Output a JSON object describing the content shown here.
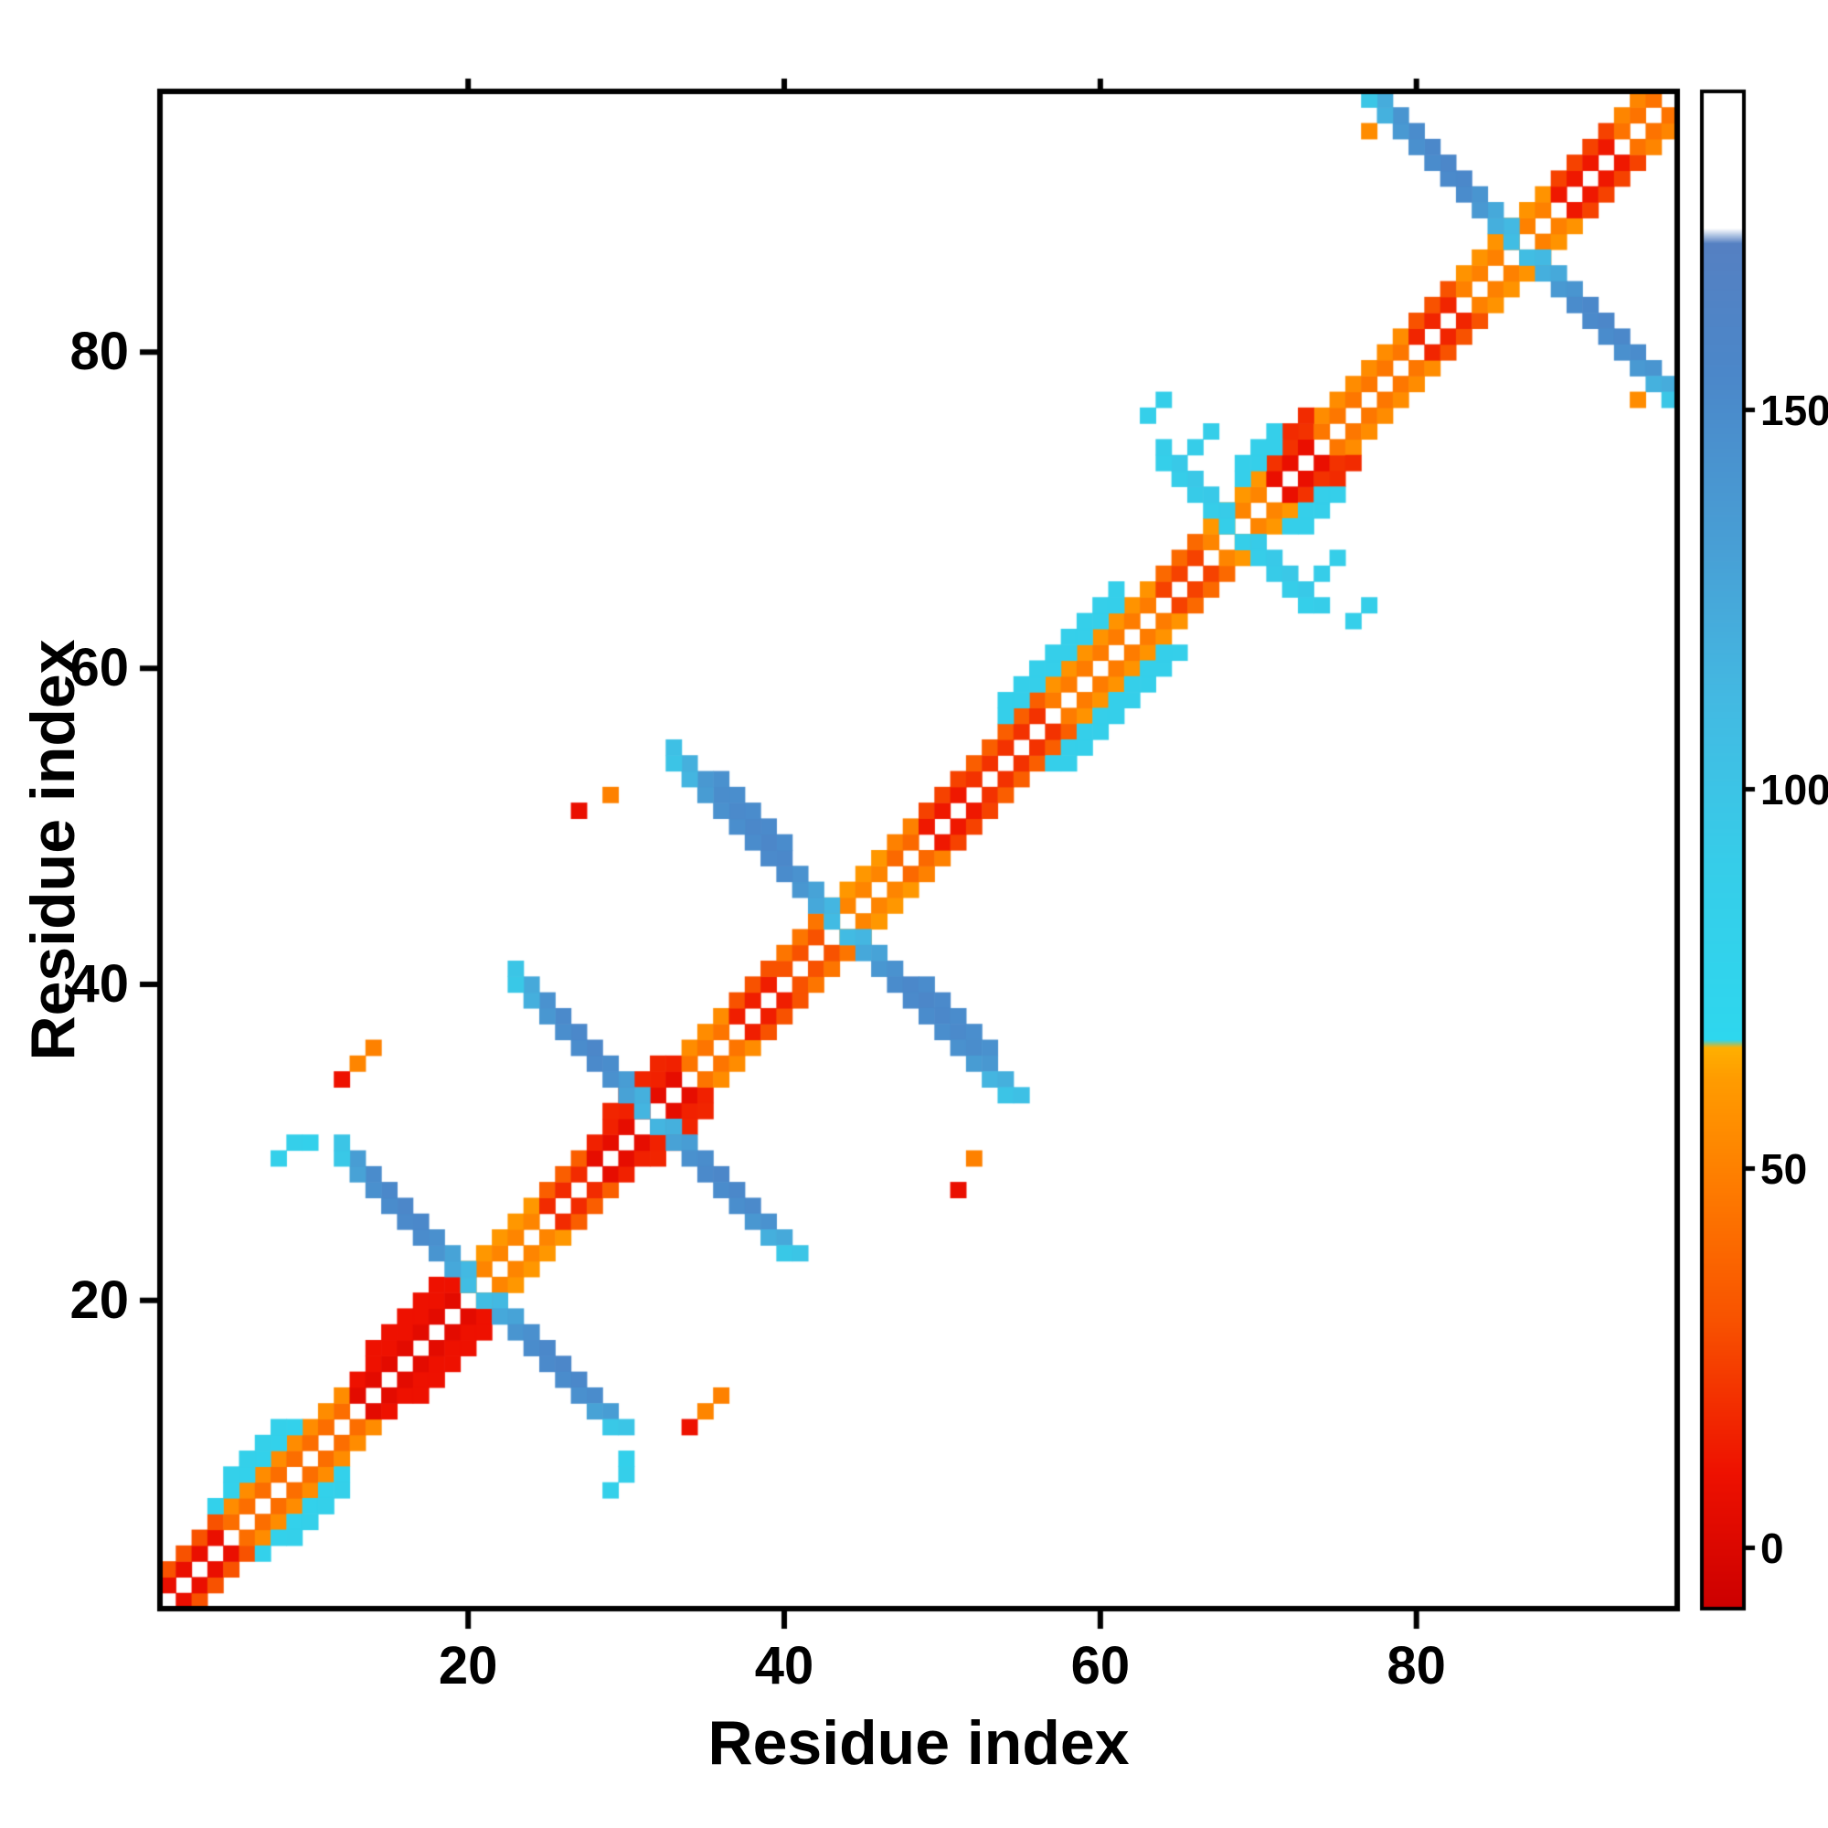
{
  "chart_data": {
    "type": "heatmap",
    "title": "",
    "xlabel": "Residue index",
    "ylabel": "Residue index",
    "n_residues": 96,
    "x_range": [
      0.5,
      96.5
    ],
    "y_range": [
      0.5,
      96.5
    ],
    "x_ticks": [
      20,
      40,
      60,
      80
    ],
    "y_ticks": [
      20,
      40,
      60,
      80
    ],
    "grid": false,
    "symmetric": true,
    "background_value_color": "#ffffff",
    "colorbar": {
      "position": "right",
      "vmin": -8,
      "vmax": 192,
      "ticks": [
        0,
        50,
        100,
        150
      ],
      "stops": [
        [
          -8,
          "#cc0000"
        ],
        [
          10,
          "#ee1100"
        ],
        [
          30,
          "#f85200"
        ],
        [
          48,
          "#fe7c00"
        ],
        [
          62,
          "#ff9c00"
        ],
        [
          66,
          "#ffb000"
        ],
        [
          67,
          "#2ed7ee"
        ],
        [
          90,
          "#36cde9"
        ],
        [
          112,
          "#43b9e2"
        ],
        [
          132,
          "#489fd5"
        ],
        [
          155,
          "#4b87c9"
        ],
        [
          172,
          "#5580c2"
        ],
        [
          174,
          "#ffffff"
        ],
        [
          192,
          "#ffffff"
        ]
      ]
    },
    "features": {
      "diagonal_band_segments": [
        {
          "from": 1,
          "to": 4,
          "o1": 8,
          "o2": 30
        },
        {
          "from": 5,
          "to": 12,
          "o1": 42,
          "o2": 55
        },
        {
          "from": 13,
          "to": 19,
          "o1": 4,
          "o2": 10
        },
        {
          "from": 20,
          "to": 24,
          "o1": 52,
          "o2": 60
        },
        {
          "from": 25,
          "to": 27,
          "o1": 18,
          "o2": 35
        },
        {
          "from": 28,
          "to": 33,
          "o1": 6,
          "o2": 15
        },
        {
          "from": 34,
          "to": 36,
          "o1": 45,
          "o2": 55
        },
        {
          "from": 37,
          "to": 39,
          "o1": 14,
          "o2": 30
        },
        {
          "from": 40,
          "to": 42,
          "o1": 30,
          "o2": 45
        },
        {
          "from": 43,
          "to": 46,
          "o1": 52,
          "o2": 60
        },
        {
          "from": 47,
          "to": 48,
          "o1": 40,
          "o2": 50
        },
        {
          "from": 49,
          "to": 51,
          "o1": 12,
          "o2": 25
        },
        {
          "from": 52,
          "to": 56,
          "o1": 20,
          "o2": 35
        },
        {
          "from": 57,
          "to": 63,
          "o1": 48,
          "o2": 58
        },
        {
          "from": 64,
          "to": 66,
          "o1": 25,
          "o2": 40
        },
        {
          "from": 67,
          "to": 70,
          "o1": 52,
          "o2": 60
        },
        {
          "from": 71,
          "to": 73,
          "o1": 8,
          "o2": 20
        },
        {
          "from": 74,
          "to": 79,
          "o1": 46,
          "o2": 55
        },
        {
          "from": 80,
          "to": 82,
          "o1": 16,
          "o2": 30
        },
        {
          "from": 83,
          "to": 88,
          "o1": 50,
          "o2": 58
        },
        {
          "from": 89,
          "to": 92,
          "o1": 12,
          "o2": 25
        },
        {
          "from": 93,
          "to": 95,
          "o1": 44,
          "o2": 52
        }
      ],
      "diagonal_band_offset3": [
        {
          "from": 14,
          "to": 18,
          "v": 10
        },
        {
          "from": 29,
          "to": 32,
          "v": 16
        },
        {
          "from": 71,
          "to": 73,
          "v": 18
        }
      ],
      "antidiagonal_crosses": [
        {
          "center": 20.5,
          "width_lines": [
            0,
            1
          ],
          "vals": [
            108,
            125,
            142,
            150,
            152,
            150,
            146,
            130,
            95
          ]
        },
        {
          "center": 31.5,
          "width_lines": [
            0,
            1
          ],
          "vals": [
            115,
            130,
            145,
            152,
            150,
            148,
            140,
            120,
            95
          ]
        },
        {
          "center": 43.5,
          "width_lines": [
            0,
            1
          ],
          "vals": [
            110,
            125,
            140,
            150,
            152,
            150,
            148,
            145,
            135,
            115,
            100
          ],
          "wide": {
            "s": 2,
            "from_t": 3,
            "to_t": 7
          }
        },
        {
          "center": 68.5,
          "width_lines": [
            0,
            1
          ],
          "vals": [
            88,
            90,
            92,
            90,
            86
          ]
        },
        {
          "center": 86.5,
          "width_lines": [
            0,
            1
          ],
          "vals": [
            108,
            120,
            138,
            150,
            152,
            150,
            146,
            138,
            118,
            98
          ]
        }
      ],
      "parallel_bands": [
        {
          "from": 54,
          "to": 61,
          "offsets": [
            3,
            4
          ],
          "v": 86
        },
        {
          "from": 4,
          "to": 9,
          "offsets": [
            3
          ],
          "v": 80
        },
        {
          "from": 5,
          "to": 8,
          "offsets": [
            4
          ],
          "v": 84
        },
        {
          "from": 69,
          "to": 71,
          "offsets": [
            3,
            4
          ],
          "v": 86
        }
      ],
      "isolated_cells": [
        [
          27,
          51,
          8
        ],
        [
          29,
          52,
          50
        ],
        [
          12,
          34,
          10
        ],
        [
          14,
          36,
          50
        ],
        [
          13,
          35,
          52
        ],
        [
          8,
          29,
          84
        ],
        [
          9,
          30,
          86
        ],
        [
          10,
          30,
          82
        ],
        [
          63,
          76,
          86
        ],
        [
          64,
          77,
          88
        ],
        [
          66,
          74,
          90
        ],
        [
          67,
          75,
          88
        ],
        [
          77,
          94,
          55
        ]
      ]
    }
  }
}
